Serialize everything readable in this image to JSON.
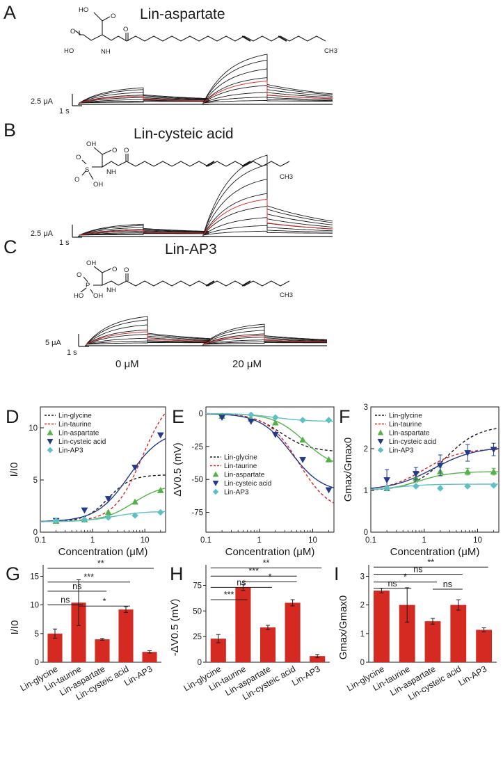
{
  "panels": {
    "A": {
      "label": "A",
      "title": "Lin-aspartate",
      "scale_y": "2.5 μA",
      "scale_x": "1 s"
    },
    "B": {
      "label": "B",
      "title": "Lin-cysteic acid",
      "scale_y": "2.5 μA",
      "scale_x": "1 s"
    },
    "C": {
      "label": "C",
      "title": "Lin-AP3",
      "scale_y": "5 μA",
      "scale_x": "1 s",
      "conditions": [
        "0 μM",
        "20 μM"
      ]
    }
  },
  "atoms": {
    "A": [
      "HO",
      "O",
      "HO",
      "O",
      "NH",
      "O",
      "CH3"
    ],
    "B": [
      "O",
      "OH",
      "O",
      "S",
      "O",
      "OH",
      "NH",
      "O",
      "CH3"
    ],
    "C": [
      "O",
      "OH",
      "O",
      "P",
      "HO",
      "OH",
      "NH",
      "O",
      "CH3"
    ]
  },
  "colors": {
    "black": "#1a1a1a",
    "red": "#e0201c",
    "green": "#55b24a",
    "navy": "#233a8c",
    "cyan": "#5ec0c4",
    "bar": "#d42a22",
    "control": "#e03030"
  },
  "legend": [
    "Lin-glycine",
    "Lin-taurine",
    "Lin-aspartate",
    "Lin-cysteic acid",
    "Lin-AP3"
  ],
  "chart_data": [
    {
      "id": "D",
      "label": "D",
      "type": "scatter",
      "xscale": "log",
      "xlabel": "Concentration (μM)",
      "ylabel": "I/I0",
      "xlim": [
        0.1,
        25
      ],
      "ylim": [
        0,
        12
      ],
      "xticks": [
        "0.1",
        "1",
        "10"
      ],
      "yticks": [
        "0",
        "5",
        "10"
      ],
      "fits": [
        {
          "name": "Lin-glycine",
          "style": "dash",
          "color": "#1a1a1a",
          "bottom": 1,
          "top": 5.5,
          "ec50": 2.0,
          "n": 2.0
        },
        {
          "name": "Lin-taurine",
          "style": "dash",
          "color": "#e0201c",
          "bottom": 1,
          "top": 13.5,
          "ec50": 9.0,
          "n": 1.6
        },
        {
          "name": "Lin-aspartate",
          "style": "solid",
          "color": "#55b24a",
          "bottom": 1,
          "top": 4.6,
          "ec50": 6.0,
          "n": 1.5
        },
        {
          "name": "Lin-cysteic acid",
          "style": "solid",
          "color": "#233a8c",
          "bottom": 1,
          "top": 9.8,
          "ec50": 5.0,
          "n": 1.4
        },
        {
          "name": "Lin-AP3",
          "style": "solid",
          "color": "#5ec0c4",
          "bottom": 1,
          "top": 2.0,
          "ec50": 2.5,
          "n": 1.5
        }
      ],
      "series": [
        {
          "name": "Lin-aspartate",
          "marker": "triangle-up",
          "color": "#55b24a",
          "x": [
            0.2,
            0.7,
            2,
            6.5,
            20
          ],
          "y": [
            1.05,
            1.2,
            1.9,
            2.9,
            4.0
          ]
        },
        {
          "name": "Lin-cysteic acid",
          "marker": "triangle-down",
          "color": "#233a8c",
          "x": [
            0.2,
            0.7,
            2,
            6.5,
            20
          ],
          "y": [
            1.1,
            2.1,
            3.2,
            6.2,
            9.3
          ]
        },
        {
          "name": "Lin-AP3",
          "marker": "diamond",
          "color": "#5ec0c4",
          "x": [
            0.2,
            0.7,
            2,
            6.5,
            20
          ],
          "y": [
            1.1,
            1.2,
            1.4,
            1.6,
            1.9
          ]
        }
      ]
    },
    {
      "id": "E",
      "label": "E",
      "type": "scatter",
      "xscale": "log",
      "xlabel": "Concentration (μM)",
      "ylabel": "ΔV0.5 (mV)",
      "xlim": [
        0.1,
        25
      ],
      "ylim": [
        -90,
        5
      ],
      "xticks": [
        "0.1",
        "1",
        "10"
      ],
      "yticks": [
        "0",
        "-25",
        "-50",
        "-75"
      ],
      "fits": [
        {
          "name": "Lin-glycine",
          "style": "dash",
          "color": "#1a1a1a",
          "bottom": 0,
          "top": -29,
          "ec50": 2.5,
          "n": 1.6
        },
        {
          "name": "Lin-taurine",
          "style": "dash",
          "color": "#e0201c",
          "bottom": 0,
          "top": -75,
          "ec50": 5.5,
          "n": 1.5
        },
        {
          "name": "Lin-aspartate",
          "style": "solid",
          "color": "#55b24a",
          "bottom": 0,
          "top": -42,
          "ec50": 7.0,
          "n": 1.5
        },
        {
          "name": "Lin-cysteic acid",
          "style": "solid",
          "color": "#233a8c",
          "bottom": 0,
          "top": -60,
          "ec50": 4.0,
          "n": 1.5
        },
        {
          "name": "Lin-AP3",
          "style": "solid",
          "color": "#5ec0c4",
          "bottom": 0,
          "top": -6,
          "ec50": 2.0,
          "n": 1.5
        }
      ],
      "series": [
        {
          "name": "Lin-aspartate",
          "marker": "triangle-up",
          "color": "#55b24a",
          "x": [
            0.2,
            0.7,
            2,
            6.5,
            20
          ],
          "y": [
            -2,
            -4,
            -7,
            -20,
            -35
          ]
        },
        {
          "name": "Lin-cysteic acid",
          "marker": "triangle-down",
          "color": "#233a8c",
          "x": [
            0.2,
            0.7,
            2,
            6.5,
            20
          ],
          "y": [
            -3,
            -6,
            -16,
            -35,
            -58
          ]
        },
        {
          "name": "Lin-AP3",
          "marker": "diamond",
          "color": "#5ec0c4",
          "x": [
            0.7,
            2,
            6.5,
            20
          ],
          "y": [
            -1,
            -3,
            -5,
            -5
          ]
        }
      ]
    },
    {
      "id": "F",
      "label": "F",
      "type": "scatter",
      "xscale": "log",
      "xlabel": "Concentration (μM)",
      "ylabel": "Gmax/Gmax0",
      "xlim": [
        0.1,
        25
      ],
      "ylim": [
        0,
        3
      ],
      "xticks": [
        "0.1",
        "1",
        "10"
      ],
      "yticks": [
        "0",
        "1",
        "2",
        "3"
      ],
      "fits": [
        {
          "name": "Lin-glycine",
          "style": "dash",
          "color": "#1a1a1a",
          "bottom": 1,
          "top": 2.55,
          "ec50": 2.5,
          "n": 1.4
        },
        {
          "name": "Lin-taurine",
          "style": "dash",
          "color": "#e0201c",
          "bottom": 1,
          "top": 2.0,
          "ec50": 1.0,
          "n": 1.3
        },
        {
          "name": "Lin-aspartate",
          "style": "solid",
          "color": "#55b24a",
          "bottom": 1,
          "top": 1.45,
          "ec50": 0.8,
          "n": 1.5
        },
        {
          "name": "Lin-cysteic acid",
          "style": "solid",
          "color": "#233a8c",
          "bottom": 1,
          "top": 2.05,
          "ec50": 1.5,
          "n": 1.1
        },
        {
          "name": "Lin-AP3",
          "style": "solid",
          "color": "#5ec0c4",
          "bottom": 1,
          "top": 1.15,
          "ec50": 0.3,
          "n": 1.5
        }
      ],
      "series": [
        {
          "name": "Lin-aspartate",
          "marker": "triangle-up",
          "color": "#55b24a",
          "x": [
            0.2,
            0.7,
            2,
            6.5,
            20
          ],
          "y": [
            1.05,
            1.3,
            1.45,
            1.45,
            1.45
          ],
          "err": [
            0.05,
            0.1,
            0.1,
            0.08,
            0.08
          ]
        },
        {
          "name": "Lin-cysteic acid",
          "marker": "triangle-down",
          "color": "#233a8c",
          "x": [
            0.2,
            0.7,
            2,
            6.5,
            20
          ],
          "y": [
            1.25,
            1.4,
            1.6,
            1.9,
            1.98
          ],
          "err": [
            0.25,
            0.15,
            0.25,
            0.2,
            0.15
          ]
        },
        {
          "name": "Lin-AP3",
          "marker": "diamond",
          "color": "#5ec0c4",
          "x": [
            0.2,
            0.7,
            2,
            6.5,
            20
          ],
          "y": [
            1.05,
            1.1,
            1.05,
            1.1,
            1.12
          ],
          "err": [
            0.03,
            0.03,
            0.03,
            0.03,
            0.03
          ]
        }
      ]
    },
    {
      "id": "G",
      "label": "G",
      "type": "bar",
      "ylabel": "I/I0",
      "ylim": [
        0,
        17
      ],
      "yticks": [
        "0",
        "5",
        "10",
        "15"
      ],
      "categories": [
        "Lin-glycine",
        "Lin-taurine",
        "Lin-aspartate",
        "Lin-cysteic acid",
        "Lin-AP3"
      ],
      "values": [
        5.0,
        10.4,
        4.0,
        9.2,
        1.8
      ],
      "errors": [
        0.8,
        4.0,
        0.15,
        0.5,
        0.2
      ],
      "brackets": [
        {
          "from": 0,
          "to": 4,
          "y": 16.4,
          "label": "**"
        },
        {
          "from": 0,
          "to": 3,
          "y": 14.0,
          "label": "***"
        },
        {
          "from": 0,
          "to": 2,
          "y": 12.4,
          "label": "ns"
        },
        {
          "from": 0,
          "to": 1,
          "y": 10.0,
          "label": "ns"
        },
        {
          "from": 1,
          "to": 3,
          "y": 9.8,
          "label": "*"
        }
      ]
    },
    {
      "id": "H",
      "label": "H",
      "type": "bar",
      "ylabel": "-ΔV0.5 (mV)",
      "ylim": [
        0,
        95
      ],
      "yticks": [
        "0",
        "25",
        "50",
        "75"
      ],
      "categories": [
        "Lin-glycine",
        "Lin-taurine",
        "Lin-aspartate",
        "Lin-cysteic acid",
        "Lin-AP3"
      ],
      "values": [
        23,
        73,
        34,
        58,
        6
      ],
      "errors": [
        4,
        3,
        2,
        3,
        1.5
      ],
      "brackets": [
        {
          "from": 0,
          "to": 4,
          "y": 92,
          "label": "**"
        },
        {
          "from": 0,
          "to": 3,
          "y": 84,
          "label": "***"
        },
        {
          "from": 0,
          "to": 2,
          "y": 73,
          "label": "ns"
        },
        {
          "from": 0,
          "to": 1,
          "y": 61,
          "label": "***"
        },
        {
          "from": 1,
          "to": 3,
          "y": 78.5,
          "label": "*"
        }
      ]
    },
    {
      "id": "I",
      "label": "I",
      "type": "bar",
      "ylabel": "Gmax/Gmax0",
      "ylim": [
        0,
        3.4
      ],
      "yticks": [
        "0",
        "1",
        "2",
        "3"
      ],
      "categories": [
        "Lin-glycine",
        "Lin-taurine",
        "Lin-aspartate",
        "Lin-cysteic acid",
        "Lin-AP3"
      ],
      "values": [
        2.5,
        2.0,
        1.43,
        2.0,
        1.13
      ],
      "errors": [
        0.08,
        0.6,
        0.1,
        0.18,
        0.07
      ],
      "brackets": [
        {
          "from": 0,
          "to": 4,
          "y": 3.32,
          "label": "**"
        },
        {
          "from": 0,
          "to": 3,
          "y": 3.07,
          "label": "ns"
        },
        {
          "from": 0,
          "to": 2,
          "y": 2.8,
          "label": "*"
        },
        {
          "from": 0,
          "to": 1,
          "y": 2.58,
          "label": "ns"
        },
        {
          "from": 2,
          "to": 3,
          "y": 2.55,
          "label": "ns"
        }
      ]
    }
  ]
}
